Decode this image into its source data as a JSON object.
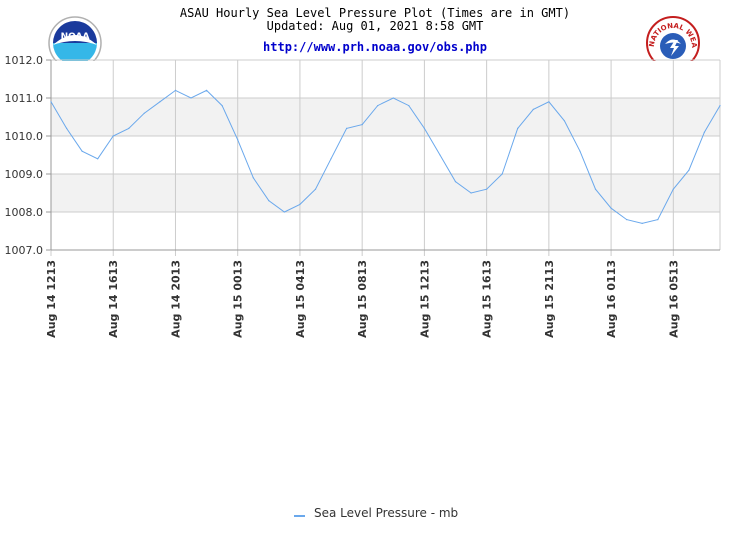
{
  "header": {
    "title": "ASAU Hourly Sea Level Pressure Plot (Times are in GMT)",
    "updated": "Updated: Aug 01, 2021 8:58 GMT",
    "link": "http://www.prh.noaa.gov/obs.php"
  },
  "logos": {
    "noaa_text": "NOAA",
    "nws_text": "NATIONAL WEATHER SERVICE"
  },
  "colors": {
    "line": "#6aa8ec",
    "band": "#f2f2f2",
    "grid": "#cccccc",
    "link": "#0000cc"
  },
  "chart_data": {
    "type": "line",
    "ylim": [
      1007.0,
      1012.0
    ],
    "yticks": [
      "1012.0",
      "1011.0",
      "1010.0",
      "1009.0",
      "1008.0",
      "1007.0"
    ],
    "xticks": [
      "Aug 14 1213",
      "Aug 14 1613",
      "Aug 14 2013",
      "Aug 15 0013",
      "Aug 15 0413",
      "Aug 15 0813",
      "Aug 15 1213",
      "Aug 15 1613",
      "Aug 15 2113",
      "Aug 16 0113",
      "Aug 16 0513"
    ],
    "x_hours_at_ticks": [
      0,
      4,
      8,
      12,
      16,
      20,
      24,
      28,
      32,
      36,
      40
    ],
    "x_range_hours": [
      0,
      43
    ],
    "series": [
      {
        "name": "Sea Level Pressure - mb",
        "x": [
          0,
          1,
          2,
          3,
          4,
          5,
          6,
          7,
          8,
          9,
          10,
          11,
          12,
          13,
          14,
          15,
          16,
          17,
          18,
          19,
          20,
          21,
          22,
          23,
          24,
          25,
          26,
          27,
          28,
          29,
          30,
          31,
          32,
          33,
          34,
          35,
          36,
          37,
          38,
          39,
          40,
          41,
          42,
          43
        ],
        "values": [
          1010.9,
          1010.2,
          1009.6,
          1009.4,
          1010.0,
          1010.2,
          1010.6,
          1010.9,
          1011.2,
          1011.0,
          1011.2,
          1010.8,
          1009.9,
          1008.9,
          1008.3,
          1008.0,
          1008.2,
          1008.6,
          1009.4,
          1010.2,
          1010.3,
          1010.8,
          1011.0,
          1010.8,
          1010.2,
          1009.5,
          1008.8,
          1008.5,
          1008.6,
          1009.0,
          1010.2,
          1010.7,
          1010.9,
          1010.4,
          1009.6,
          1008.6,
          1008.1,
          1007.8,
          1007.7,
          1007.8,
          1008.6,
          1009.1,
          1010.1,
          1010.8
        ]
      }
    ],
    "legend": "bottom-center",
    "grid": true
  }
}
